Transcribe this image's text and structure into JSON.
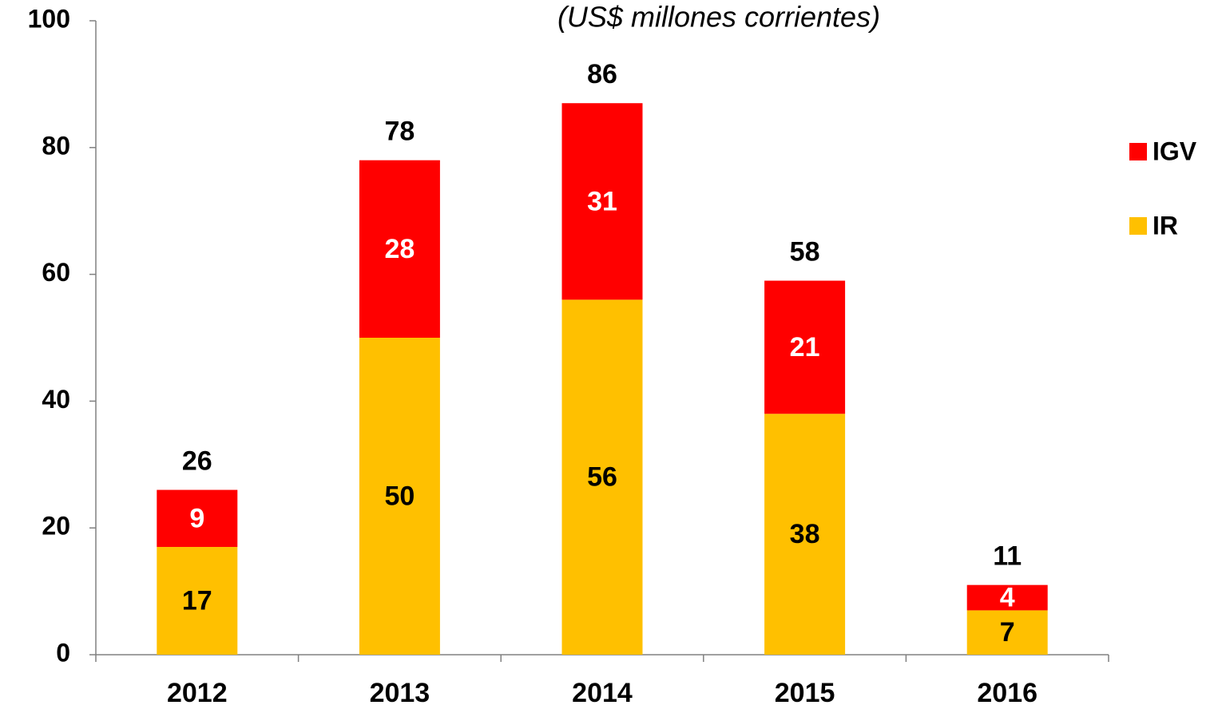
{
  "chart_data": {
    "type": "stacked_bar",
    "subtitle": "(US$ millones corrientes)",
    "categories": [
      "2012",
      "2013",
      "2014",
      "2015",
      "2016"
    ],
    "series": [
      {
        "name": "IR",
        "color": "#ffc000",
        "label_color": "#000000",
        "values": [
          17,
          50,
          56,
          38,
          7
        ]
      },
      {
        "name": "IGV",
        "color": "#ff0000",
        "label_color": "#ffffff",
        "values": [
          9,
          28,
          31,
          21,
          4
        ]
      }
    ],
    "totals": [
      26,
      78,
      86,
      58,
      11
    ],
    "ylim": [
      0,
      100
    ],
    "yticks": [
      0,
      20,
      40,
      60,
      80,
      100
    ],
    "legend": "right",
    "grid": false
  }
}
